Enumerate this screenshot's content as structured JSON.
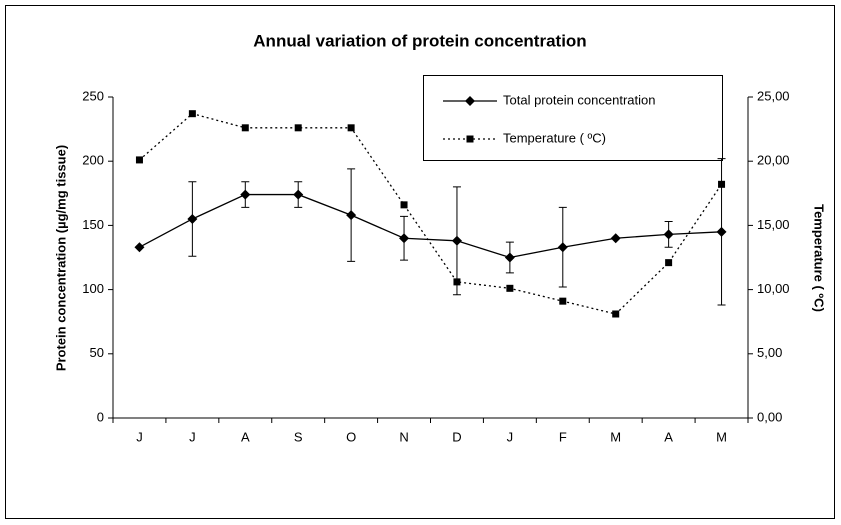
{
  "chart_data": {
    "type": "line",
    "title": "Annual variation of protein concentration",
    "ylabel": "Protein concentration (µg/mg tissue)",
    "y2label": "Temperature ( ºC)",
    "categories": [
      "J",
      "J",
      "A",
      "S",
      "O",
      "N",
      "D",
      "J",
      "F",
      "M",
      "A",
      "M"
    ],
    "series": [
      {
        "name": "Total protein concentration",
        "color": "#000000",
        "marker": "diamond",
        "dash": "solid",
        "values": [
          133,
          155,
          174,
          174,
          158,
          140,
          138,
          125,
          133,
          140,
          143,
          145
        ],
        "errors": [
          null,
          29,
          10,
          10,
          36,
          17,
          42,
          12,
          31,
          null,
          10,
          57
        ]
      },
      {
        "name": "Temperature ( ºC)",
        "color": "#000000",
        "marker": "square",
        "dash": "dotted",
        "axis": "y2",
        "values": [
          20.1,
          23.7,
          22.6,
          22.6,
          22.6,
          16.6,
          10.6,
          10.1,
          9.1,
          8.1,
          12.1,
          18.2
        ]
      }
    ],
    "ylim": [
      0,
      250
    ],
    "yticks": [
      0,
      50,
      100,
      150,
      200,
      250
    ],
    "y2lim": [
      0,
      25
    ],
    "y2ticks": [
      {
        "value": 0,
        "label": "0,00"
      },
      {
        "value": 5,
        "label": "5,00"
      },
      {
        "value": 10,
        "label": "10,00"
      },
      {
        "value": 15,
        "label": "15,00"
      },
      {
        "value": 20,
        "label": "20,00"
      },
      {
        "value": 25,
        "label": "25,00"
      }
    ]
  }
}
